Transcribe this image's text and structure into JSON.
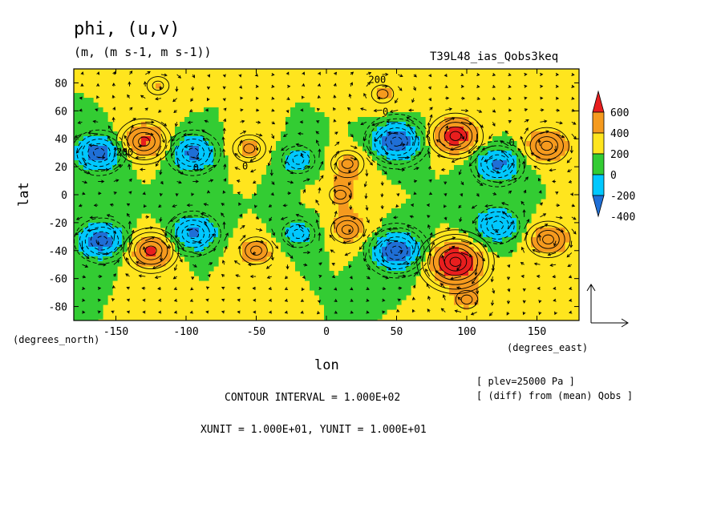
{
  "chart_data": {
    "type": "heatmap",
    "title": "phi, (u,v)",
    "units": "(m, (m s-1, m s-1))",
    "run_id": "T39L48_ias_Qobs3keq",
    "xlabel": "lon",
    "ylabel": "lat",
    "x_unit_label": "(degrees_east)",
    "y_unit_label": "(degrees_north)",
    "xlim": [
      -180,
      180
    ],
    "ylim": [
      -90,
      90
    ],
    "x_ticks": [
      -150,
      -100,
      -50,
      0,
      50,
      100,
      150
    ],
    "y_ticks": [
      80,
      60,
      40,
      20,
      0,
      -20,
      -40,
      -60,
      -80
    ],
    "colorbar": {
      "labels": [
        "600",
        "400",
        "200",
        "0",
        "-200",
        "-400"
      ],
      "levels": [
        -600,
        -400,
        -200,
        0,
        200,
        400,
        600
      ],
      "colors": [
        "#1f6fd6",
        "#00c8ff",
        "#33cc33",
        "#ffe51e",
        "#f59a1e",
        "#e81e1e"
      ]
    },
    "contour_labels": [
      "200",
      "200",
      "0",
      "0",
      "0",
      "0"
    ],
    "contour_interval_text": "CONTOUR INTERVAL = 1.000E+02",
    "unit_vector_text": "XUNIT = 1.000E+01, YUNIT = 1.000E+01",
    "plev_text": "[ plev=25000 Pa ]",
    "diff_text": "[ (diff) from (mean) Qobs ]",
    "anomalies": [
      {
        "lon": -162,
        "lat": 30,
        "value": -500
      },
      {
        "lon": -130,
        "lat": 38,
        "value": 450
      },
      {
        "lon": -95,
        "lat": 30,
        "value": -450
      },
      {
        "lon": -55,
        "lat": 33,
        "value": 250
      },
      {
        "lon": -20,
        "lat": 25,
        "value": -300
      },
      {
        "lon": 15,
        "lat": 22,
        "value": 250
      },
      {
        "lon": 50,
        "lat": 38,
        "value": -550
      },
      {
        "lon": 92,
        "lat": 42,
        "value": 500
      },
      {
        "lon": 122,
        "lat": 22,
        "value": -450
      },
      {
        "lon": 157,
        "lat": 35,
        "value": 400
      },
      {
        "lon": 10,
        "lat": 0,
        "value": 200
      },
      {
        "lon": -160,
        "lat": -33,
        "value": -500
      },
      {
        "lon": -125,
        "lat": -40,
        "value": 450
      },
      {
        "lon": -95,
        "lat": -28,
        "value": -450
      },
      {
        "lon": -50,
        "lat": -40,
        "value": 300
      },
      {
        "lon": -20,
        "lat": -28,
        "value": -300
      },
      {
        "lon": 15,
        "lat": -25,
        "value": 300
      },
      {
        "lon": 50,
        "lat": -40,
        "value": -550
      },
      {
        "lon": 92,
        "lat": -48,
        "value": 650
      },
      {
        "lon": 122,
        "lat": -22,
        "value": -400
      },
      {
        "lon": 158,
        "lat": -32,
        "value": 350
      },
      {
        "lon": 40,
        "lat": 72,
        "value": 220
      },
      {
        "lon": 100,
        "lat": -75,
        "value": 230
      },
      {
        "lon": -120,
        "lat": 78,
        "value": 200
      }
    ]
  }
}
